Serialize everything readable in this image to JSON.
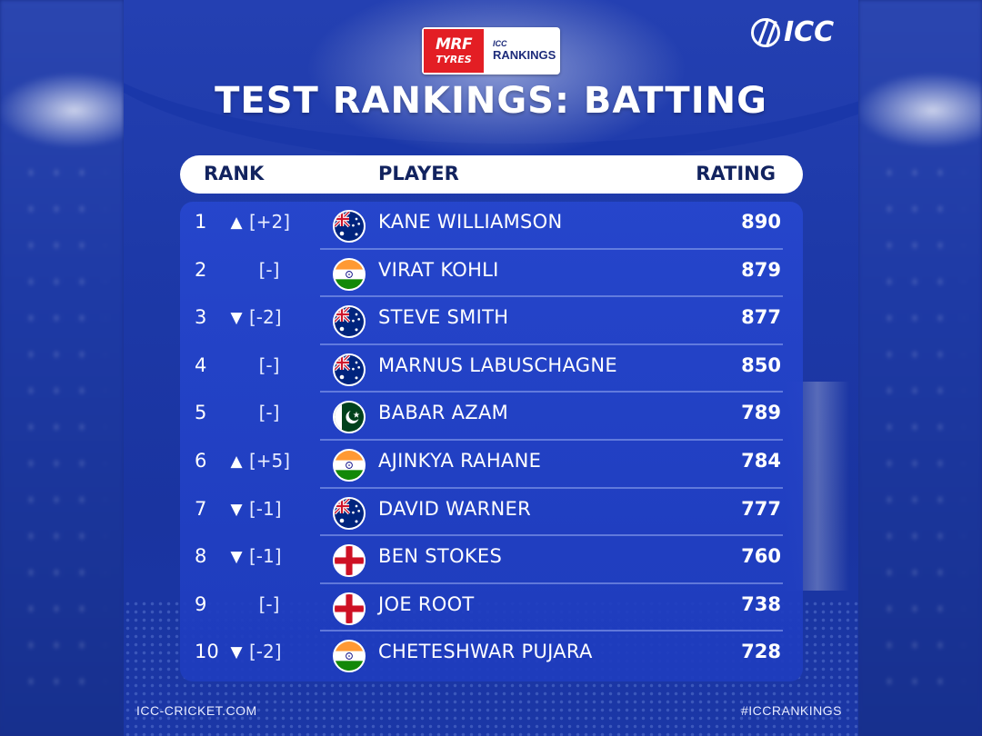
{
  "header": {
    "sponsor_brand": "MRF",
    "sponsor_sub": "TYRES",
    "badge_top": "ICC",
    "badge_main": "RANKINGS",
    "logo_text": "ICC",
    "title": "TEST RANKINGS: BATTING"
  },
  "columns": {
    "rank": "RANK",
    "player": "PLAYER",
    "rating": "RATING"
  },
  "rows": [
    {
      "rank": "1",
      "trend": "up",
      "change": "[+2]",
      "flag": "australia-flag",
      "player": "KANE WILLIAMSON",
      "rating": "890"
    },
    {
      "rank": "2",
      "trend": "none",
      "change": "[-]",
      "flag": "india-flag",
      "player": "VIRAT KOHLI",
      "rating": "879"
    },
    {
      "rank": "3",
      "trend": "down",
      "change": "[-2]",
      "flag": "australia-flag",
      "player": "STEVE SMITH",
      "rating": "877"
    },
    {
      "rank": "4",
      "trend": "none",
      "change": "[-]",
      "flag": "australia-flag",
      "player": "MARNUS LABUSCHAGNE",
      "rating": "850"
    },
    {
      "rank": "5",
      "trend": "none",
      "change": "[-]",
      "flag": "pakistan-flag",
      "player": "BABAR AZAM",
      "rating": "789"
    },
    {
      "rank": "6",
      "trend": "up",
      "change": "[+5]",
      "flag": "india-flag",
      "player": "AJINKYA RAHANE",
      "rating": "784"
    },
    {
      "rank": "7",
      "trend": "down",
      "change": "[-1]",
      "flag": "australia-flag",
      "player": "DAVID WARNER",
      "rating": "777"
    },
    {
      "rank": "8",
      "trend": "down",
      "change": "[-1]",
      "flag": "england-flag",
      "player": "BEN STOKES",
      "rating": "760"
    },
    {
      "rank": "9",
      "trend": "none",
      "change": "[-]",
      "flag": "england-flag",
      "player": "JOE ROOT",
      "rating": "738"
    },
    {
      "rank": "10",
      "trend": "down",
      "change": "[-2]",
      "flag": "india-flag",
      "player": "CHETESHWAR PUJARA",
      "rating": "728"
    }
  ],
  "footer": {
    "left": "ICC-CRICKET.COM",
    "right": "#ICCRANKINGS"
  },
  "colors": {
    "background": "#1d39a8",
    "table": "#2646cd",
    "header_text": "#12235f",
    "sponsor_red": "#e31e24"
  }
}
